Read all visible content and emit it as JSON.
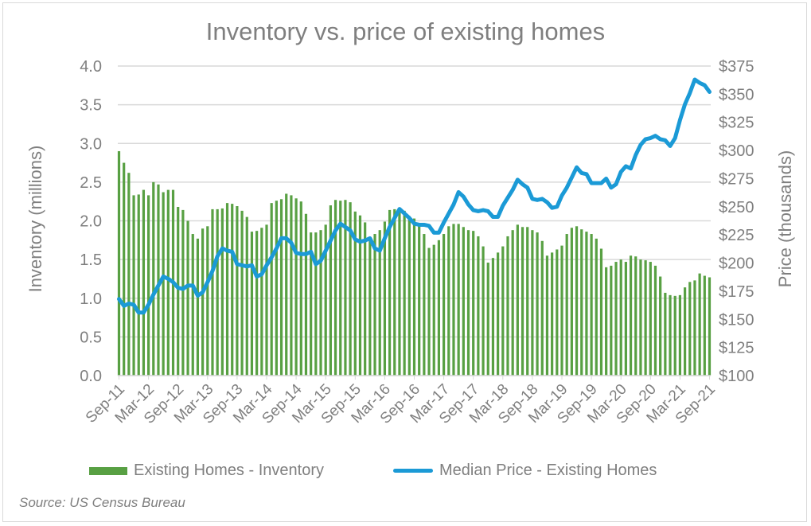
{
  "chart_data": {
    "type": "bar+line",
    "title": "Inventory vs. price of existing homes",
    "ylabel": "Inventory (millions)",
    "y2label": "Price (thousands)",
    "ylim": [
      0,
      4
    ],
    "y2lim": [
      100,
      375
    ],
    "yticks": [
      "0.0",
      "0.5",
      "1.0",
      "1.5",
      "2.0",
      "2.5",
      "3.0",
      "3.5",
      "4.0"
    ],
    "y2ticks": [
      "$100",
      "$125",
      "$150",
      "$175",
      "$200",
      "$225",
      "$250",
      "$275",
      "$300",
      "$325",
      "$350",
      "$375"
    ],
    "xticks": [
      "Sep-11",
      "Mar-12",
      "Sep-12",
      "Mar-13",
      "Sep-13",
      "Mar-14",
      "Sep-14",
      "Mar-15",
      "Sep-15",
      "Mar-16",
      "Sep-16",
      "Mar-17",
      "Sep-17",
      "Mar-18",
      "Sep-18",
      "Mar-19",
      "Sep-19",
      "Mar-20",
      "Sep-20",
      "Mar-21",
      "Sep-21"
    ],
    "grid": true,
    "legend_position": "bottom",
    "colors": {
      "bars": "#58a043",
      "line": "#1b9ad6"
    },
    "series": [
      {
        "name": "Existing Homes - Inventory",
        "type": "bar",
        "axis": "left",
        "values": [
          2.9,
          2.75,
          2.62,
          2.33,
          2.34,
          2.4,
          2.33,
          2.5,
          2.47,
          2.37,
          2.4,
          2.4,
          2.18,
          2.14,
          2.0,
          1.83,
          1.77,
          1.9,
          1.93,
          2.15,
          2.15,
          2.16,
          2.23,
          2.22,
          2.19,
          2.13,
          2.05,
          1.86,
          1.87,
          1.91,
          1.95,
          2.23,
          2.26,
          2.28,
          2.35,
          2.33,
          2.29,
          2.25,
          2.09,
          1.85,
          1.85,
          1.88,
          1.95,
          2.2,
          2.27,
          2.26,
          2.27,
          2.24,
          2.12,
          2.07,
          1.98,
          1.79,
          1.83,
          1.88,
          1.99,
          2.14,
          2.15,
          2.12,
          2.13,
          2.06,
          2.03,
          1.97,
          1.83,
          1.65,
          1.69,
          1.75,
          1.83,
          1.93,
          1.96,
          1.96,
          1.92,
          1.88,
          1.87,
          1.8,
          1.67,
          1.46,
          1.52,
          1.59,
          1.67,
          1.8,
          1.88,
          1.95,
          1.92,
          1.92,
          1.88,
          1.85,
          1.74,
          1.55,
          1.59,
          1.63,
          1.68,
          1.83,
          1.91,
          1.93,
          1.89,
          1.86,
          1.83,
          1.77,
          1.64,
          1.4,
          1.42,
          1.47,
          1.5,
          1.47,
          1.55,
          1.54,
          1.5,
          1.49,
          1.47,
          1.42,
          1.28,
          1.07,
          1.04,
          1.03,
          1.04,
          1.14,
          1.21,
          1.23,
          1.32,
          1.29,
          1.27
        ]
      },
      {
        "name": "Median Price - Existing Homes",
        "type": "line",
        "axis": "right",
        "values": [
          168,
          162,
          164,
          163,
          156,
          156,
          163,
          172,
          180,
          188,
          186,
          183,
          178,
          177,
          180,
          180,
          171,
          174,
          183,
          193,
          206,
          213,
          211,
          210,
          199,
          198,
          197,
          198,
          188,
          190,
          198,
          205,
          213,
          222,
          222,
          218,
          209,
          208,
          208,
          210,
          199,
          202,
          211,
          220,
          229,
          235,
          232,
          229,
          221,
          219,
          220,
          222,
          213,
          211,
          222,
          232,
          240,
          248,
          244,
          240,
          235,
          234,
          234,
          233,
          227,
          227,
          236,
          244,
          252,
          263,
          259,
          252,
          247,
          246,
          247,
          246,
          241,
          241,
          251,
          258,
          265,
          274,
          270,
          267,
          257,
          256,
          257,
          254,
          249,
          250,
          260,
          267,
          276,
          285,
          280,
          279,
          271,
          271,
          271,
          275,
          267,
          270,
          281,
          286,
          284,
          296,
          305,
          310,
          311,
          313,
          310,
          309,
          304,
          311,
          327,
          341,
          351,
          363,
          360,
          358,
          352
        ]
      }
    ]
  },
  "source": "Source: US Census Bureau"
}
